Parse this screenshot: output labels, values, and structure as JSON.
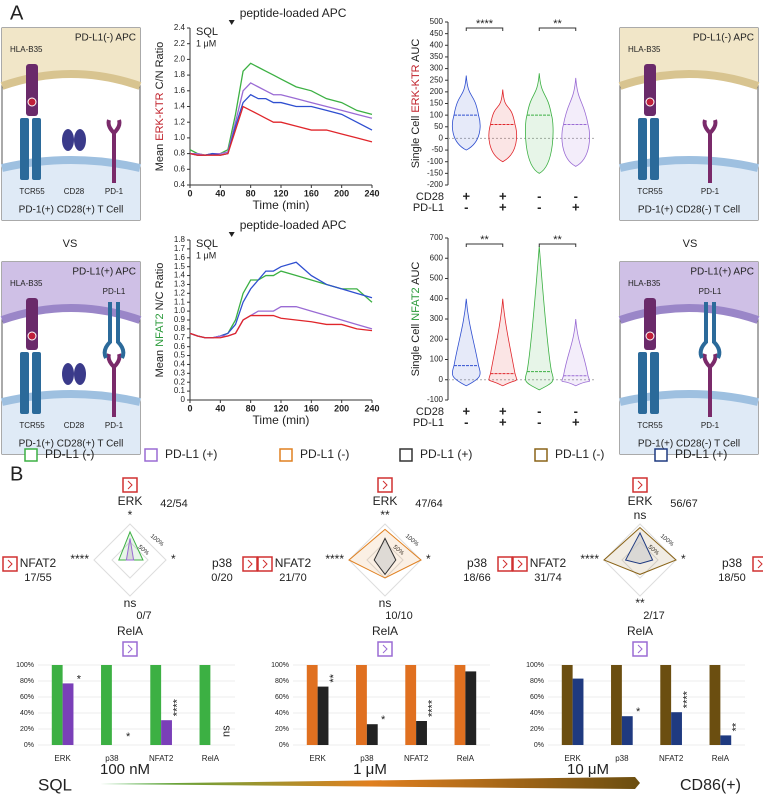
{
  "panel_labels": [
    "A",
    "B"
  ],
  "vs": [
    "VS",
    "VS"
  ],
  "cartoons": [
    {
      "apc": "PD-L1(-) APC",
      "hla": "HLA-B35",
      "tcr": "TCR55",
      "cd28": "CD28",
      "pd1": "PD-1",
      "tcell": "PD-1(+) CD28(+) T Cell"
    },
    {
      "apc": "PD-L1(+) APC",
      "hla": "HLA-B35",
      "pdl1": "PD-L1",
      "tcr": "TCR55",
      "cd28": "CD28",
      "pd1": "PD-1",
      "tcell": "PD-1(+) CD28(+) T Cell"
    },
    {
      "apc": "PD-L1(-) APC",
      "hla": "HLA-B35",
      "tcr": "TCR55",
      "pd1": "PD-1",
      "tcell": "PD-1(+) CD28(-) T Cell"
    },
    {
      "apc": "PD-L1(+) APC",
      "hla": "HLA-B35",
      "pdl1": "PD-L1",
      "tcr": "TCR55",
      "pd1": "PD-1",
      "tcell": "PD-1(+) CD28(-) T Cell"
    }
  ],
  "chart_data": [
    {
      "type": "line",
      "ylabel": [
        "Mean ",
        "ERK-KTR",
        " C/N Ratio"
      ],
      "xlabel": "Time (min)",
      "annotation": "peptide-loaded APC",
      "annotation_x": 55,
      "condition": [
        "SQL",
        "1 μM"
      ],
      "x": [
        0,
        10,
        20,
        30,
        40,
        50,
        60,
        70,
        80,
        90,
        100,
        110,
        120,
        140,
        160,
        180,
        200,
        220,
        240
      ],
      "series": [
        {
          "color": "#3cb043",
          "values": [
            0.85,
            0.8,
            0.78,
            0.8,
            0.8,
            0.85,
            1.3,
            1.85,
            1.95,
            1.9,
            1.85,
            1.8,
            1.75,
            1.65,
            1.6,
            1.5,
            1.45,
            1.35,
            1.3
          ]
        },
        {
          "color": "#9a6bd4",
          "values": [
            0.8,
            0.8,
            0.78,
            0.8,
            0.8,
            0.82,
            1.2,
            1.6,
            1.7,
            1.65,
            1.6,
            1.55,
            1.55,
            1.5,
            1.45,
            1.4,
            1.35,
            1.3,
            1.25
          ]
        },
        {
          "color": "#2f4fd0",
          "values": [
            0.8,
            0.78,
            0.78,
            0.8,
            0.78,
            0.8,
            1.15,
            1.45,
            1.55,
            1.5,
            1.5,
            1.45,
            1.45,
            1.4,
            1.4,
            1.35,
            1.3,
            1.2,
            1.1
          ]
        },
        {
          "color": "#e0262b",
          "values": [
            0.8,
            0.78,
            0.78,
            0.78,
            0.78,
            0.8,
            1.1,
            1.4,
            1.35,
            1.3,
            1.25,
            1.2,
            1.2,
            1.15,
            1.1,
            1.1,
            1.05,
            1.0,
            0.95
          ]
        }
      ],
      "xlim": [
        0,
        240
      ],
      "xticks": [
        0,
        40,
        80,
        120,
        160,
        200,
        240
      ],
      "ylim": [
        0.4,
        2.4
      ],
      "yticks": [
        0.4,
        0.6,
        0.8,
        {
          "value": 1,
          "label": "1.0"
        },
        1.2,
        1.4,
        1.6,
        1.8,
        {
          "value": 2,
          "label": "2.0"
        },
        2.2,
        2.4
      ]
    },
    {
      "type": "line",
      "ylabel": [
        "Mean ",
        "NFAT2",
        " N/C Ratio"
      ],
      "xlabel": "Time (min)",
      "annotation": "peptide-loaded APC",
      "annotation_x": 55,
      "condition": [
        "SQL",
        "1 μM"
      ],
      "x": [
        0,
        10,
        20,
        30,
        40,
        50,
        60,
        70,
        80,
        90,
        100,
        110,
        120,
        140,
        160,
        180,
        200,
        220,
        240
      ],
      "series": [
        {
          "color": "#3cb043",
          "values": [
            0.75,
            0.72,
            0.7,
            0.7,
            0.72,
            0.75,
            0.9,
            1.2,
            1.35,
            1.35,
            1.4,
            1.4,
            1.45,
            1.4,
            1.35,
            1.3,
            1.25,
            1.25,
            1.1
          ]
        },
        {
          "color": "#2f4fd0",
          "values": [
            0.75,
            0.72,
            0.7,
            0.7,
            0.72,
            0.75,
            0.85,
            1.1,
            1.25,
            1.35,
            1.45,
            1.45,
            1.5,
            1.55,
            1.4,
            1.3,
            1.25,
            1.2,
            1.15
          ]
        },
        {
          "color": "#9a6bd4",
          "values": [
            0.75,
            0.72,
            0.7,
            0.7,
            0.72,
            0.72,
            0.75,
            0.9,
            0.95,
            1.0,
            1.0,
            1.0,
            1.05,
            1.05,
            1.0,
            0.95,
            0.9,
            0.85,
            0.8
          ]
        },
        {
          "color": "#e0262b",
          "values": [
            0.75,
            0.72,
            0.7,
            0.7,
            0.7,
            0.72,
            0.75,
            0.9,
            0.95,
            0.95,
            0.95,
            0.95,
            0.92,
            0.9,
            0.88,
            0.85,
            0.85,
            0.8,
            0.78
          ]
        }
      ],
      "xlim": [
        0,
        240
      ],
      "xticks": [
        0,
        40,
        80,
        120,
        160,
        200,
        240
      ],
      "ylim": [
        0,
        1.8
      ],
      "yticks": [
        0,
        0.1,
        0.2,
        0.3,
        0.4,
        0.5,
        0.6,
        0.7,
        0.8,
        0.9,
        {
          "value": 1,
          "label": "1.0"
        },
        1.1,
        1.2,
        1.3,
        1.4,
        1.5,
        1.6,
        1.7,
        1.8
      ]
    },
    {
      "type": "violin",
      "ylabel": [
        "Single Cell ",
        "ERK-KTR",
        " AUC"
      ],
      "series": [
        {
          "color": "#2f4fd0",
          "min": -50,
          "median": 100,
          "max": 270
        },
        {
          "color": "#e0262b",
          "min": -100,
          "median": 60,
          "max": 210
        },
        {
          "color": "#3cb043",
          "min": -150,
          "median": 100,
          "max": 280
        },
        {
          "color": "#9a6bd4",
          "min": -120,
          "median": 60,
          "max": 260
        }
      ],
      "conditions": {
        "rows": [
          "CD28",
          "PD-L1"
        ],
        "signs": [
          [
            "+",
            "+",
            "-",
            "-"
          ],
          [
            "-",
            "+",
            "-",
            "+"
          ]
        ]
      },
      "significance": [
        "****",
        "**"
      ],
      "ylim": [
        -200,
        500
      ],
      "yticks": [
        -200,
        -150,
        -100,
        -50,
        0,
        50,
        100,
        150,
        200,
        250,
        300,
        350,
        400,
        450,
        500
      ]
    },
    {
      "type": "violin",
      "ylabel": [
        "Single Cell ",
        "NFAT2",
        " AUC"
      ],
      "series": [
        {
          "color": "#2f4fd0",
          "min": -30,
          "median": 70,
          "max": 400
        },
        {
          "color": "#e0262b",
          "min": -30,
          "median": 30,
          "max": 400
        },
        {
          "color": "#3cb043",
          "min": -50,
          "median": 40,
          "max": 660
        },
        {
          "color": "#9a6bd4",
          "min": -30,
          "median": 20,
          "max": 300
        }
      ],
      "conditions": {
        "rows": [
          "CD28",
          "PD-L1"
        ],
        "signs": [
          [
            "+",
            "+",
            "-",
            "-"
          ],
          [
            "-",
            "+",
            "-",
            "+"
          ]
        ]
      },
      "significance": [
        "**",
        "**"
      ],
      "ylim": [
        -100,
        700
      ],
      "yticks": [
        -100,
        0,
        100,
        200,
        300,
        400,
        500,
        600,
        700
      ]
    },
    {
      "type": "radar",
      "axes": [
        "ERK",
        "p38",
        "RelA",
        "NFAT2"
      ],
      "counts": [
        "42/54",
        "0/20",
        "0/7",
        "17/55"
      ],
      "significance": [
        "*",
        "*",
        "ns",
        "****"
      ],
      "rlim": [
        0,
        100
      ],
      "rticks": [
        {
          "value": 50,
          "label": "50%"
        },
        {
          "value": 100,
          "label": "100%"
        }
      ],
      "series": [
        {
          "name": "PD-L1 (-)",
          "color": "#3cb043",
          "values": [
            78,
            36,
            0,
            31
          ]
        },
        {
          "name": "PD-L1 (+)",
          "color": "#9a6bd4",
          "values": [
            60,
            10,
            0,
            10
          ]
        }
      ]
    },
    {
      "type": "radar",
      "axes": [
        "ERK",
        "p38",
        "RelA",
        "NFAT2"
      ],
      "counts": [
        "47/64",
        "18/66",
        "10/10",
        "21/70"
      ],
      "significance": [
        "**",
        "*",
        "ns",
        "****"
      ],
      "rlim": [
        0,
        100
      ],
      "rticks": [
        {
          "value": 50,
          "label": "50%"
        },
        {
          "value": 100,
          "label": "100%"
        }
      ],
      "series": [
        {
          "name": "PD-L1 (-)",
          "color": "#e08020",
          "values": [
            85,
            100,
            50,
            100
          ]
        },
        {
          "name": "PD-L1 (+)",
          "color": "#333333",
          "values": [
            60,
            30,
            40,
            30
          ]
        }
      ]
    },
    {
      "type": "radar",
      "axes": [
        "ERK",
        "p38",
        "RelA",
        "NFAT2"
      ],
      "counts": [
        "56/67",
        "18/50",
        "2/17",
        "31/74"
      ],
      "significance": [
        "ns",
        "*",
        "**",
        "****"
      ],
      "rlim": [
        0,
        100
      ],
      "rticks": [
        {
          "value": 50,
          "label": "50%"
        },
        {
          "value": 100,
          "label": "100%"
        }
      ],
      "series": [
        {
          "name": "PD-L1 (-)",
          "color": "#8a6418",
          "values": [
            90,
            100,
            40,
            100
          ]
        },
        {
          "name": "PD-L1 (+)",
          "color": "#1f3a80",
          "values": [
            75,
            35,
            10,
            40
          ]
        }
      ]
    },
    {
      "type": "bar",
      "categories": [
        "ERK",
        "p38",
        "NFAT2",
        "RelA"
      ],
      "significance": [
        "*",
        "*",
        "****",
        "ns"
      ],
      "series": [
        {
          "color": "#3cb043",
          "values": [
            100,
            100,
            100,
            100
          ]
        },
        {
          "color": "#7a3fb8",
          "values": [
            77,
            0,
            31,
            0
          ]
        }
      ],
      "ylim": [
        0,
        100
      ],
      "yticks": [
        {
          "value": 0,
          "label": "0%"
        },
        {
          "value": 20,
          "label": "20%"
        },
        {
          "value": 40,
          "label": "40%"
        },
        {
          "value": 60,
          "label": "60%"
        },
        {
          "value": 80,
          "label": "80%"
        },
        {
          "value": 100,
          "label": "100%"
        }
      ]
    },
    {
      "type": "bar",
      "categories": [
        "ERK",
        "p38",
        "NFAT2",
        "RelA"
      ],
      "significance": [
        "**",
        "*",
        "****",
        null
      ],
      "series": [
        {
          "color": "#e07020",
          "values": [
            100,
            100,
            100,
            100
          ]
        },
        {
          "color": "#222222",
          "values": [
            73,
            26,
            30,
            92
          ]
        }
      ],
      "ylim": [
        0,
        100
      ],
      "yticks": [
        {
          "value": 0,
          "label": "0%"
        },
        {
          "value": 20,
          "label": "20%"
        },
        {
          "value": 40,
          "label": "40%"
        },
        {
          "value": 60,
          "label": "60%"
        },
        {
          "value": 80,
          "label": "80%"
        },
        {
          "value": 100,
          "label": "100%"
        }
      ]
    },
    {
      "type": "bar",
      "categories": [
        "ERK",
        "p38",
        "NFAT2",
        "RelA"
      ],
      "significance": [
        null,
        "*",
        "****",
        "**"
      ],
      "series": [
        {
          "color": "#6b4e10",
          "values": [
            100,
            100,
            100,
            100
          ]
        },
        {
          "color": "#1f3a80",
          "values": [
            83,
            36,
            41,
            12
          ]
        }
      ],
      "ylim": [
        0,
        100
      ],
      "yticks": [
        {
          "value": 0,
          "label": "0%"
        },
        {
          "value": 20,
          "label": "20%"
        },
        {
          "value": 40,
          "label": "40%"
        },
        {
          "value": 60,
          "label": "60%"
        },
        {
          "value": 80,
          "label": "80%"
        },
        {
          "value": 100,
          "label": "100%"
        }
      ]
    }
  ],
  "gradient": {
    "label": "SQL",
    "stops": [
      "100 nM",
      "1 μM",
      "10 μM"
    ],
    "colors": [
      "#3cb043",
      "#e08020",
      "#6b4e10"
    ],
    "end": "CD86(+)"
  }
}
